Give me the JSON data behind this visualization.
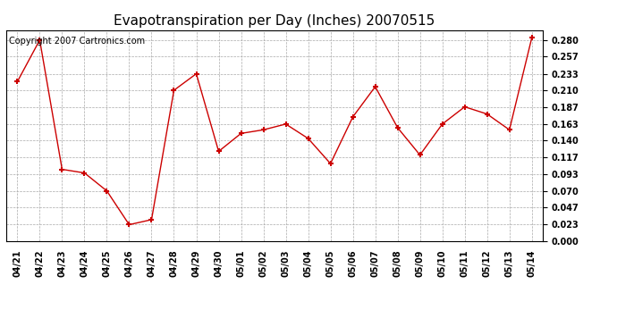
{
  "title": "Evapotranspiration per Day (Inches) 20070515",
  "copyright_text": "Copyright 2007 Cartronics.com",
  "x_labels": [
    "04/21",
    "04/22",
    "04/23",
    "04/24",
    "04/25",
    "04/26",
    "04/27",
    "04/28",
    "04/29",
    "04/30",
    "05/01",
    "05/02",
    "05/03",
    "05/04",
    "05/05",
    "05/06",
    "05/07",
    "05/08",
    "05/09",
    "05/10",
    "05/11",
    "05/12",
    "05/13",
    "05/14"
  ],
  "y_values": [
    0.222,
    0.28,
    0.1,
    0.095,
    0.07,
    0.023,
    0.03,
    0.21,
    0.233,
    0.125,
    0.15,
    0.155,
    0.163,
    0.143,
    0.108,
    0.173,
    0.215,
    0.158,
    0.12,
    0.163,
    0.187,
    0.177,
    0.155,
    0.283
  ],
  "line_color": "#cc0000",
  "marker": "+",
  "marker_size": 5,
  "ylim": [
    0.0,
    0.2937
  ],
  "yticks": [
    0.0,
    0.023,
    0.047,
    0.07,
    0.093,
    0.117,
    0.14,
    0.163,
    0.187,
    0.21,
    0.233,
    0.257,
    0.28
  ],
  "bg_color": "#ffffff",
  "plot_bg_color": "#ffffff",
  "grid_color": "#aaaaaa",
  "title_fontsize": 11,
  "tick_fontsize": 7,
  "copyright_fontsize": 7
}
